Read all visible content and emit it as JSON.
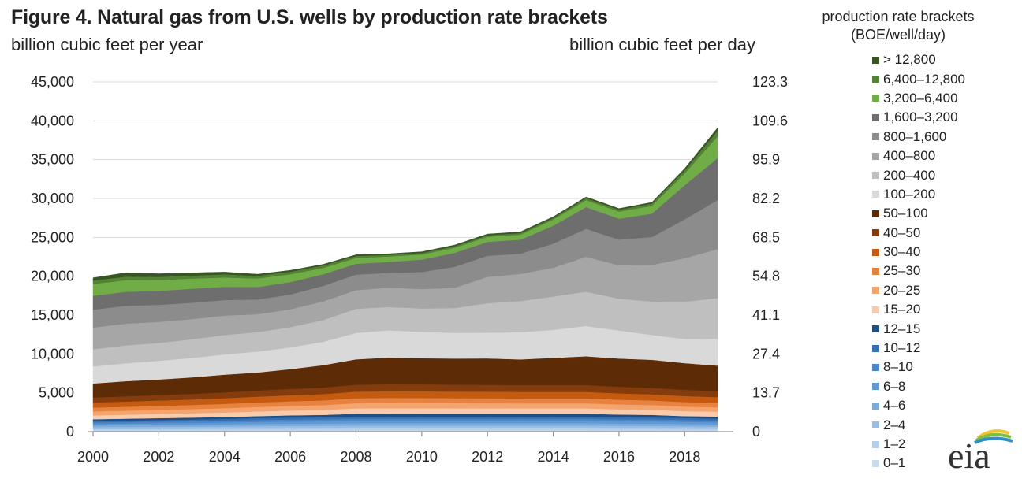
{
  "title": "Figure 4. Natural gas from U.S. wells by production rate brackets",
  "left_unit": "billion cubic feet per year",
  "right_unit": "billion cubic feet per day",
  "legend_title_line1": "production rate brackets",
  "legend_title_line2": "(BOE/well/day)",
  "logo_text": "eia",
  "chart_data": {
    "type": "area",
    "stacked": true,
    "x": [
      2000,
      2001,
      2002,
      2003,
      2004,
      2005,
      2006,
      2007,
      2008,
      2009,
      2010,
      2011,
      2012,
      2013,
      2014,
      2015,
      2016,
      2017,
      2018,
      2019
    ],
    "x_ticks": [
      "2000",
      "2002",
      "2004",
      "2006",
      "2008",
      "2010",
      "2012",
      "2014",
      "2016",
      "2018"
    ],
    "y_ticks_left": [
      "0",
      "5,000",
      "10,000",
      "15,000",
      "20,000",
      "25,000",
      "30,000",
      "35,000",
      "40,000",
      "45,000"
    ],
    "y_ticks_right": [
      "0",
      "13.7",
      "27.4",
      "41.1",
      "54.8",
      "68.5",
      "82.2",
      "95.9",
      "109.6",
      "123.3"
    ],
    "ylim": [
      0,
      45000
    ],
    "grid": true,
    "legend_position": "right",
    "series": [
      {
        "name": "0–1",
        "color": "#c9dcee",
        "values": [
          150,
          150,
          160,
          160,
          170,
          180,
          180,
          180,
          190,
          190,
          190,
          190,
          190,
          190,
          190,
          190,
          180,
          180,
          170,
          160
        ]
      },
      {
        "name": "1–2",
        "color": "#b6cfe8",
        "values": [
          180,
          190,
          190,
          200,
          210,
          220,
          230,
          230,
          240,
          240,
          240,
          240,
          240,
          240,
          240,
          240,
          230,
          230,
          220,
          210
        ]
      },
      {
        "name": "2–4",
        "color": "#99bde3",
        "values": [
          260,
          270,
          280,
          290,
          300,
          320,
          330,
          340,
          350,
          350,
          350,
          350,
          350,
          350,
          350,
          350,
          340,
          330,
          320,
          300
        ]
      },
      {
        "name": "4–6",
        "color": "#7aabdc",
        "values": [
          220,
          230,
          240,
          250,
          260,
          280,
          290,
          300,
          310,
          310,
          310,
          310,
          310,
          310,
          310,
          310,
          300,
          300,
          290,
          270
        ]
      },
      {
        "name": "6–8",
        "color": "#5f98d3",
        "values": [
          200,
          210,
          220,
          230,
          240,
          260,
          270,
          280,
          290,
          290,
          290,
          290,
          290,
          290,
          290,
          290,
          280,
          280,
          270,
          250
        ]
      },
      {
        "name": "8–10",
        "color": "#4a86c8",
        "values": [
          190,
          200,
          210,
          220,
          230,
          250,
          260,
          270,
          280,
          280,
          280,
          280,
          280,
          280,
          280,
          280,
          270,
          260,
          250,
          240
        ]
      },
      {
        "name": "10–12",
        "color": "#3670b3",
        "values": [
          180,
          190,
          200,
          210,
          220,
          240,
          250,
          260,
          270,
          270,
          270,
          270,
          270,
          270,
          270,
          270,
          260,
          250,
          240,
          230
        ]
      },
      {
        "name": "12–15",
        "color": "#1f4f84",
        "values": [
          220,
          230,
          240,
          250,
          260,
          250,
          290,
          300,
          370,
          380,
          370,
          370,
          370,
          370,
          370,
          370,
          340,
          330,
          240,
          290
        ]
      },
      {
        "name": "15–20",
        "color": "#f8cbad",
        "values": [
          500,
          520,
          540,
          560,
          580,
          600,
          620,
          640,
          700,
          710,
          710,
          710,
          700,
          700,
          700,
          700,
          680,
          660,
          640,
          620
        ]
      },
      {
        "name": "20–25",
        "color": "#f4a46e",
        "values": [
          500,
          510,
          520,
          540,
          560,
          580,
          600,
          620,
          660,
          670,
          670,
          660,
          660,
          650,
          650,
          650,
          630,
          610,
          590,
          570
        ]
      },
      {
        "name": "25–30",
        "color": "#e8823f",
        "values": [
          500,
          510,
          520,
          530,
          550,
          570,
          590,
          610,
          640,
          650,
          650,
          640,
          640,
          630,
          630,
          630,
          610,
          590,
          580,
          560
        ]
      },
      {
        "name": "30–40",
        "color": "#c55a11",
        "values": [
          650,
          670,
          690,
          700,
          730,
          760,
          780,
          810,
          850,
          860,
          860,
          850,
          850,
          840,
          840,
          840,
          810,
          790,
          770,
          750
        ]
      },
      {
        "name": "40–50",
        "color": "#843c0c",
        "values": [
          650,
          680,
          700,
          720,
          750,
          780,
          810,
          840,
          890,
          900,
          900,
          890,
          880,
          880,
          880,
          880,
          850,
          830,
          800,
          780
        ]
      },
      {
        "name": "50–100",
        "color": "#5e2b07",
        "values": [
          1800,
          1940,
          2010,
          2130,
          2280,
          2320,
          2550,
          2880,
          3270,
          3440,
          3360,
          3360,
          3400,
          3300,
          3500,
          3700,
          3630,
          3610,
          3440,
          3270
        ]
      },
      {
        "name": "100–200",
        "color": "#d9d9d9",
        "values": [
          2200,
          2300,
          2400,
          2500,
          2600,
          2700,
          2800,
          3000,
          3400,
          3500,
          3400,
          3300,
          3300,
          3500,
          3600,
          3900,
          3600,
          3200,
          3100,
          3500
        ]
      },
      {
        "name": "200–400",
        "color": "#bfbfbf",
        "values": [
          2200,
          2300,
          2300,
          2400,
          2500,
          2500,
          2600,
          2800,
          3100,
          3000,
          3000,
          3200,
          3800,
          4000,
          4300,
          4400,
          4100,
          4300,
          4800,
          5200
        ]
      },
      {
        "name": "400–800",
        "color": "#a6a6a6",
        "values": [
          2800,
          2800,
          2700,
          2600,
          2500,
          2300,
          2300,
          2400,
          2400,
          2500,
          2500,
          2600,
          3400,
          3500,
          3700,
          4500,
          4300,
          4700,
          5600,
          6300
        ]
      },
      {
        "name": "800–1,600",
        "color": "#8c8c8c",
        "values": [
          2300,
          2300,
          2200,
          2100,
          2000,
          1900,
          1900,
          2000,
          2000,
          1900,
          2200,
          2700,
          2700,
          2600,
          3100,
          3600,
          3300,
          3600,
          5000,
          6300
        ]
      },
      {
        "name": "1,600–3,200",
        "color": "#6e6e6e",
        "values": [
          1800,
          1800,
          1800,
          1800,
          1700,
          1600,
          1600,
          1500,
          1400,
          1400,
          1600,
          1800,
          1800,
          1800,
          2300,
          2800,
          2700,
          3000,
          4400,
          5400
        ]
      },
      {
        "name": "3,200–6,400",
        "color": "#70ad47",
        "values": [
          1500,
          1500,
          1400,
          1300,
          1200,
          1100,
          1000,
          800,
          750,
          700,
          650,
          650,
          650,
          650,
          800,
          900,
          900,
          1000,
          1500,
          2800
        ]
      },
      {
        "name": "6,400–12,800",
        "color": "#548235",
        "values": [
          450,
          450,
          400,
          400,
          400,
          350,
          330,
          320,
          250,
          200,
          200,
          200,
          200,
          200,
          200,
          250,
          250,
          300,
          400,
          700
        ]
      },
      {
        "name": "> 12,800",
        "color": "#375623",
        "values": [
          350,
          500,
          400,
          350,
          300,
          200,
          180,
          150,
          150,
          150,
          150,
          150,
          150,
          150,
          150,
          150,
          150,
          150,
          250,
          400
        ]
      }
    ]
  }
}
